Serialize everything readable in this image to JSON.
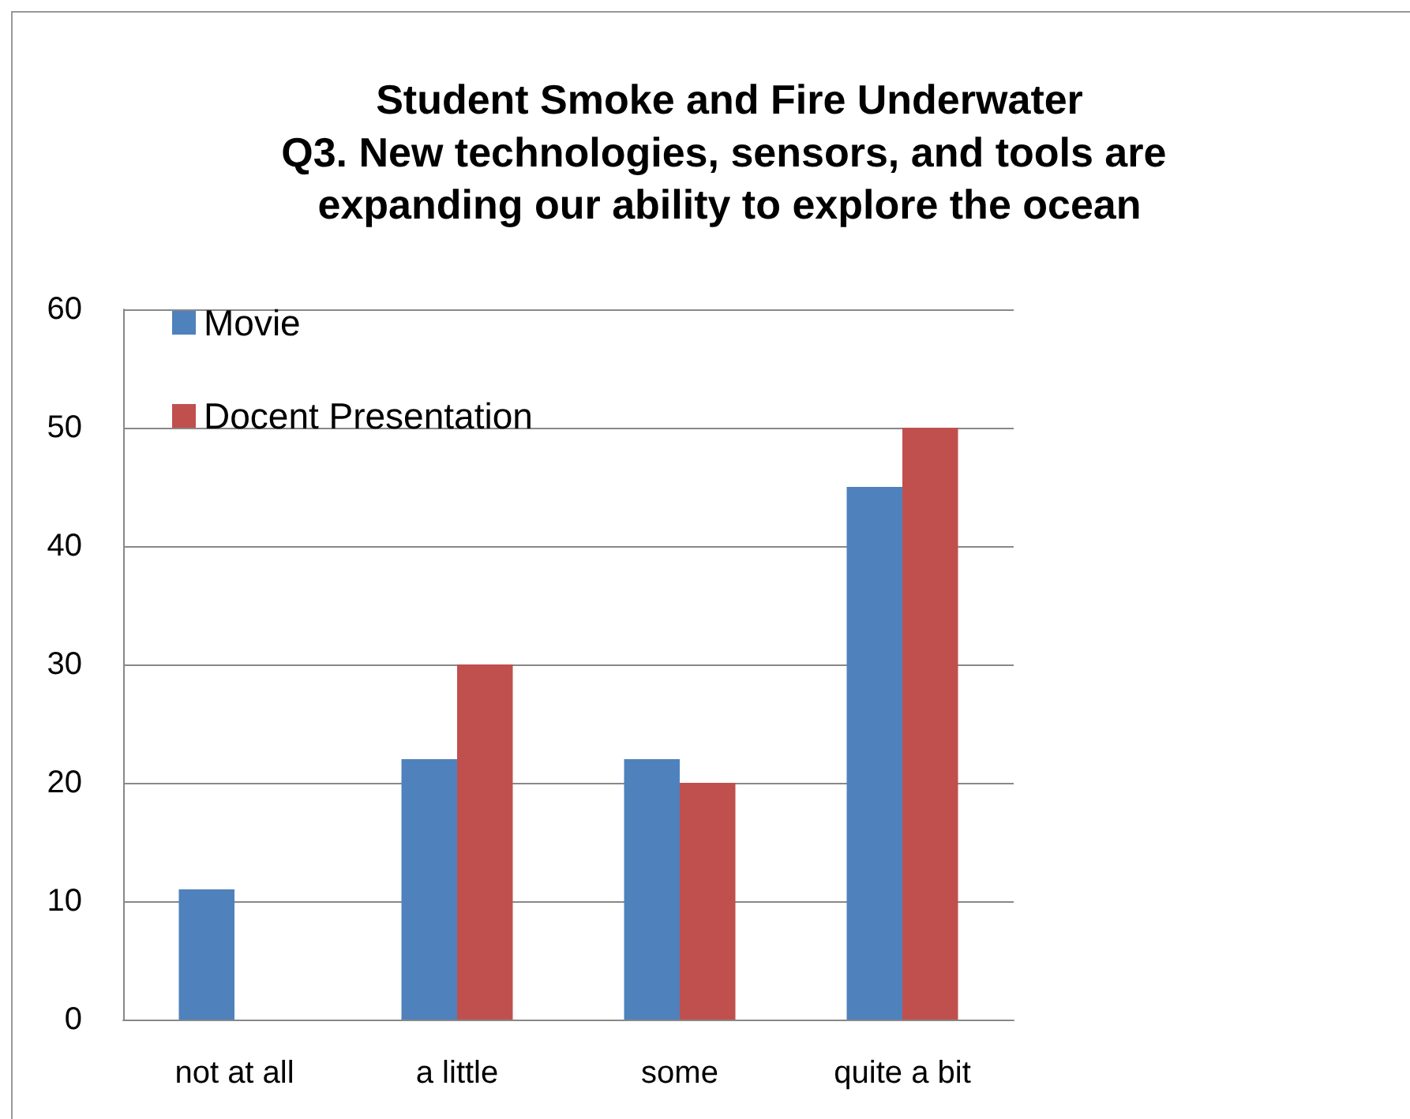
{
  "chart_data": {
    "type": "bar",
    "title": "Student Smoke and Fire Underwater",
    "subtitle": "Q3. New technologies, sensors, and tools are expanding our ability to explore the ocean",
    "categories": [
      "not at all",
      "a little",
      "some",
      "quite a bit"
    ],
    "series": [
      {
        "name": "Movie",
        "color": "#4f81bd",
        "values": [
          11,
          22,
          22,
          45
        ]
      },
      {
        "name": "Docent Presentation",
        "color": "#c0504d",
        "values": [
          0,
          30,
          20,
          50
        ]
      }
    ],
    "ylim": [
      0,
      60
    ],
    "yticks": [
      0,
      10,
      20,
      30,
      40,
      50,
      60
    ],
    "grid": "y",
    "legend": "top left"
  }
}
